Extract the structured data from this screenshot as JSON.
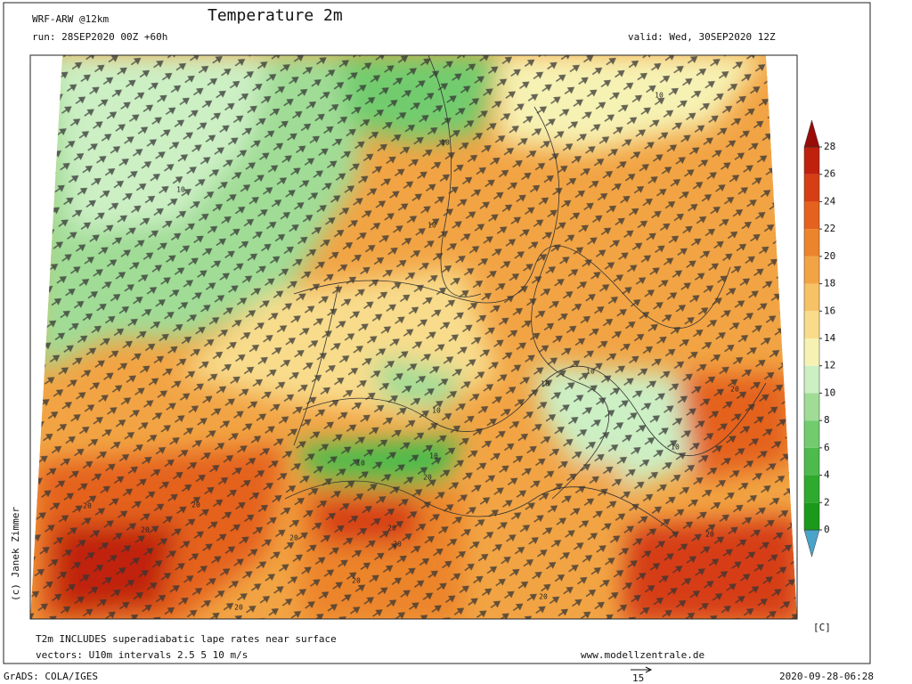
{
  "header": {
    "model": "WRF-ARW @12km",
    "title": "Temperature 2m",
    "run": "run: 28SEP2020 00Z +60h",
    "valid": "valid: Wed, 30SEP2020 12Z"
  },
  "credit": "(c) Janek Zimmer",
  "colorbar": {
    "unit": "[C]",
    "ticks": [
      0,
      2,
      4,
      6,
      8,
      10,
      12,
      14,
      16,
      18,
      20,
      22,
      24,
      26,
      28
    ],
    "colors": [
      "#4aa3c9",
      "#1a9a1a",
      "#2eaa2e",
      "#4cbb4c",
      "#72cc6e",
      "#a0dc96",
      "#ccefc4",
      "#f6f2b4",
      "#f8dc8c",
      "#f6c266",
      "#f2a444",
      "#ec842c",
      "#e4621e",
      "#d63e14",
      "#c0200e",
      "#9a0c08"
    ]
  },
  "contour_labels": [
    10,
    10,
    10,
    10,
    10,
    10,
    10,
    10,
    10,
    10,
    20,
    20,
    20,
    20,
    20,
    20,
    20,
    20,
    20,
    20,
    20,
    20
  ],
  "footer": {
    "note": "T2m INCLUDES superadiabatic lape rates near surface",
    "vectors": "vectors: U10m intervals 2.5 5 10 m/s",
    "website": "www.modellzentrale.de",
    "software": "GrADS: COLA/IGES",
    "reference_vector": "15",
    "timestamp": "2020-09-28-06:28"
  }
}
